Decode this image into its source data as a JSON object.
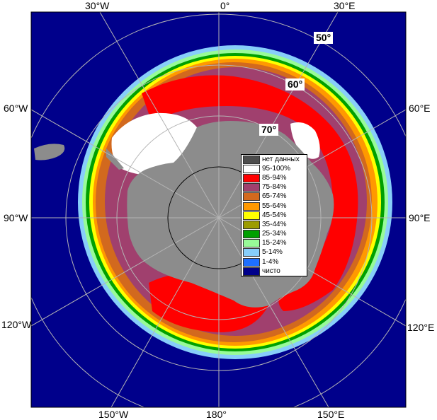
{
  "map": {
    "colors": {
      "ocean": "#00008b",
      "land": "#8c8c8c",
      "grid": "#b4b4b4",
      "ice_100": "#ffffff",
      "ice_90": "#ff0000",
      "ice_80": "#a0406e",
      "ice_70": "#d2691e",
      "ice_60": "#ff9900",
      "ice_50": "#ffff00",
      "ice_20": "#98fb98",
      "ice_10": "#87cefa"
    },
    "lon_labels": {
      "top_30w": "30°W",
      "top_0": "0°",
      "top_30e": "30°E",
      "left_60w": "60°W",
      "left_90w": "90°W",
      "left_120w": "120°W",
      "right_60e": "60°E",
      "right_90e": "90°E",
      "right_120e": "120°E",
      "bottom_150w": "150°W",
      "bottom_180": "180°",
      "bottom_150e": "150°E"
    },
    "lat_labels": {
      "lat50": "50°",
      "lat60": "60°",
      "lat70": "70°"
    }
  },
  "legend": {
    "items": [
      {
        "label": "нет данных",
        "color": "#4d4d4d"
      },
      {
        "label": "95-100%",
        "color": "#ffffff"
      },
      {
        "label": "85-94%",
        "color": "#ff0000"
      },
      {
        "label": "75-84%",
        "color": "#a0406e"
      },
      {
        "label": "65-74%",
        "color": "#d2691e"
      },
      {
        "label": "55-64%",
        "color": "#ff9900"
      },
      {
        "label": "45-54%",
        "color": "#ffff00"
      },
      {
        "label": "35-44%",
        "color": "#9c9c00"
      },
      {
        "label": "25-34%",
        "color": "#00a000"
      },
      {
        "label": "15-24%",
        "color": "#98fb98"
      },
      {
        "label": "5-14%",
        "color": "#87cefa"
      },
      {
        "label": "1-4%",
        "color": "#1e6fff"
      },
      {
        "label": "чисто",
        "color": "#00008b"
      }
    ]
  }
}
